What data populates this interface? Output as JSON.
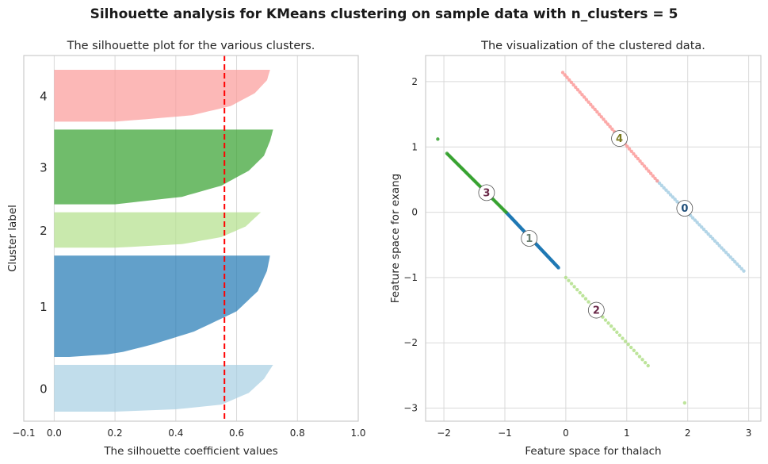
{
  "suptitle": "Silhouette analysis for KMeans clustering on sample data with n_clusters = 5",
  "chart_data": [
    {
      "type": "area",
      "title": "The silhouette plot for the various clusters.",
      "xlabel": "The silhouette coefficient values",
      "ylabel": "Cluster label",
      "xlim": [
        -0.1,
        1.0
      ],
      "xticks": [
        -0.1,
        0.0,
        0.2,
        0.4,
        0.6,
        0.8,
        1.0
      ],
      "xtick_labels": [
        "−0.1",
        "0.0",
        "0.2",
        "0.4",
        "0.6",
        "0.8",
        "1.0"
      ],
      "silhouette_avg": 0.56,
      "clusters": [
        {
          "label": "0",
          "color": "#a6cee3",
          "size": 74,
          "profile": [
            [
              0,
              0.72
            ],
            [
              0.3,
              0.69
            ],
            [
              0.6,
              0.64
            ],
            [
              0.85,
              0.55
            ],
            [
              0.95,
              0.4
            ],
            [
              1,
              0.2
            ]
          ]
        },
        {
          "label": "1",
          "color": "#1f78b4",
          "size": 160,
          "profile": [
            [
              0,
              0.71
            ],
            [
              0.15,
              0.7
            ],
            [
              0.35,
              0.67
            ],
            [
              0.55,
              0.6
            ],
            [
              0.75,
              0.46
            ],
            [
              0.88,
              0.32
            ],
            [
              0.97,
              0.2
            ],
            [
              1,
              0.05
            ]
          ]
        },
        {
          "label": "2",
          "color": "#b2df8a",
          "size": 56,
          "profile": [
            [
              0,
              0.68
            ],
            [
              0.4,
              0.63
            ],
            [
              0.7,
              0.55
            ],
            [
              0.9,
              0.42
            ],
            [
              1,
              0.2
            ]
          ]
        },
        {
          "label": "3",
          "color": "#33a02c",
          "size": 118,
          "profile": [
            [
              0,
              0.72
            ],
            [
              0.15,
              0.71
            ],
            [
              0.35,
              0.69
            ],
            [
              0.55,
              0.64
            ],
            [
              0.75,
              0.55
            ],
            [
              0.9,
              0.42
            ],
            [
              1,
              0.2
            ]
          ]
        },
        {
          "label": "4",
          "color": "#fb9a99",
          "size": 82,
          "profile": [
            [
              0,
              0.71
            ],
            [
              0.2,
              0.7
            ],
            [
              0.45,
              0.66
            ],
            [
              0.7,
              0.58
            ],
            [
              0.88,
              0.45
            ],
            [
              1,
              0.2
            ]
          ]
        }
      ]
    },
    {
      "type": "scatter",
      "title": "The visualization of the clustered data.",
      "xlabel": "Feature space for thalach",
      "ylabel": "Feature space for exang",
      "xlim": [
        -2.3,
        3.2
      ],
      "ylim": [
        -3.2,
        2.4
      ],
      "xticks": [
        -2,
        -1,
        0,
        1,
        2,
        3
      ],
      "xtick_labels": [
        "−2",
        "−1",
        "0",
        "1",
        "2",
        "3"
      ],
      "yticks": [
        -3,
        -2,
        -1,
        0,
        1,
        2
      ],
      "ytick_labels": [
        "−3",
        "−2",
        "−1",
        "0",
        "1",
        "2"
      ],
      "series": [
        {
          "cluster": "0",
          "color": "#a6cee3",
          "from": [
            1.5,
            0.48
          ],
          "to": [
            2.92,
            -0.9
          ],
          "points": 40
        },
        {
          "cluster": "1",
          "color": "#1f78b4",
          "from": [
            -0.98,
            0.0
          ],
          "to": [
            -0.12,
            -0.85
          ],
          "points": 90
        },
        {
          "cluster": "2",
          "color": "#b2df8a",
          "from": [
            0.0,
            -1.0
          ],
          "to": [
            1.35,
            -2.35
          ],
          "points": 30
        },
        {
          "cluster": "3",
          "color": "#33a02c",
          "from": [
            -1.95,
            0.9
          ],
          "to": [
            -0.98,
            0.0
          ],
          "points": 55
        },
        {
          "cluster": "4",
          "color": "#fb9a99",
          "from": [
            -0.05,
            2.14
          ],
          "to": [
            1.5,
            0.48
          ],
          "points": 45
        }
      ],
      "extra_points": [
        {
          "cluster": "3",
          "x": -2.1,
          "y": 1.12
        },
        {
          "cluster": "2",
          "x": 1.95,
          "y": -2.92
        }
      ],
      "centers": [
        {
          "label": "0",
          "x": 1.95,
          "y": 0.06,
          "text_color": "#1f4e79"
        },
        {
          "label": "1",
          "x": -0.6,
          "y": -0.4,
          "text_color": "#6b7f70"
        },
        {
          "label": "2",
          "x": 0.5,
          "y": -1.5,
          "text_color": "#6b2a4a"
        },
        {
          "label": "3",
          "x": -1.3,
          "y": 0.3,
          "text_color": "#6b2a4a"
        },
        {
          "label": "4",
          "x": 0.88,
          "y": 1.13,
          "text_color": "#7a7a20"
        }
      ]
    }
  ]
}
